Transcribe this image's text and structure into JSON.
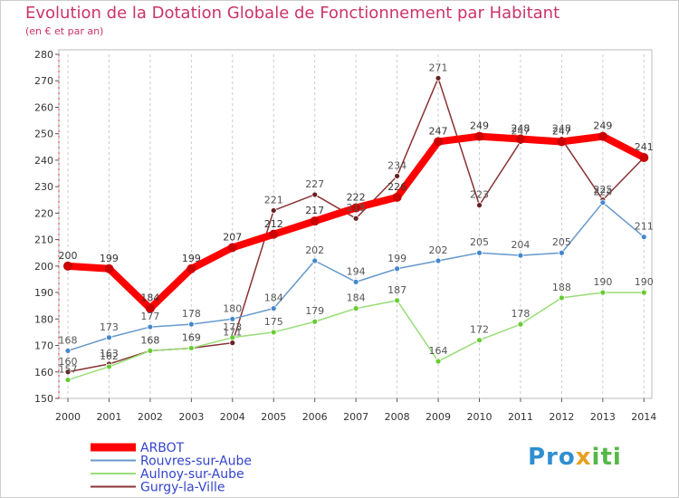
{
  "title": "Evolution de la Dotation Globale de Fonctionnement par Habitant",
  "subtitle": "(en € et par an)",
  "logo": {
    "part1": "Pro",
    "part2": "x",
    "part3": "iti"
  },
  "chart_data": {
    "type": "line",
    "title": "Evolution de la Dotation Globale de Fonctionnement par Habitant",
    "subtitle": "(en € et par an)",
    "x": [
      "2000",
      "2001",
      "2002",
      "2003",
      "2004",
      "2005",
      "2006",
      "2007",
      "2008",
      "2009",
      "2010",
      "2011",
      "2012",
      "2013",
      "2014"
    ],
    "ylim": [
      150,
      280
    ],
    "yticks": [
      150,
      160,
      170,
      180,
      190,
      200,
      210,
      220,
      230,
      240,
      250,
      260,
      270,
      280
    ],
    "grid": "vertical-dashed",
    "legend_position": "bottom-left",
    "series": [
      {
        "name": "ARBOT",
        "color": "#ff0000",
        "marker_color": "#cc0000",
        "label_color": "#333333",
        "values": [
          200,
          199,
          184,
          199,
          207,
          212,
          217,
          222,
          226,
          247,
          249,
          248,
          247,
          249,
          241
        ]
      },
      {
        "name": "Rouvres-sur-Aube",
        "color": "#6699cc",
        "marker_color": "#4488cc",
        "label_color": "#555555",
        "values": [
          168,
          173,
          177,
          178,
          180,
          184,
          202,
          194,
          199,
          202,
          205,
          204,
          205,
          224,
          211
        ]
      },
      {
        "name": "Aulnoy-sur-Aube",
        "color": "#99dd77",
        "marker_color": "#66cc33",
        "label_color": "#555555",
        "values": [
          157,
          162,
          168,
          169,
          173,
          175,
          179,
          184,
          187,
          164,
          172,
          178,
          188,
          190,
          190
        ]
      },
      {
        "name": "Gurgy-la-Ville",
        "color": "#883333",
        "marker_color": "#662222",
        "label_color": "#555555",
        "values": [
          160,
          163,
          168,
          169,
          171,
          221,
          227,
          218,
          234,
          271,
          223,
          247,
          248,
          225,
          241
        ]
      }
    ]
  }
}
